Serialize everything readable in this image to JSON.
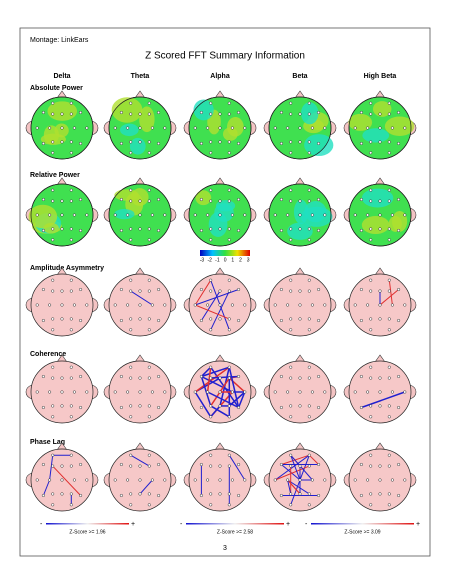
{
  "header": {
    "montage": "Montage:  LinkEars",
    "title": "Z Scored FFT Summary Information"
  },
  "columns": [
    "Delta",
    "Theta",
    "Alpha",
    "Beta",
    "High Beta"
  ],
  "rows": [
    "Absolute Power",
    "Relative Power",
    "Amplitude Asymmetry",
    "Coherence",
    "Phase Lag"
  ],
  "color_scale": {
    "ticks": [
      "-3",
      "-2",
      "-1",
      "0",
      "1",
      "2",
      "3"
    ]
  },
  "z_score_legends": [
    {
      "minus": "-",
      "label": "Z-Score >= 1.96",
      "plus": "+"
    },
    {
      "minus": "-",
      "label": "Z-Score >= 2.58",
      "plus": "+"
    },
    {
      "minus": "-",
      "label": "Z-Score >= 3.09",
      "plus": "+"
    }
  ],
  "page_number": "3"
}
